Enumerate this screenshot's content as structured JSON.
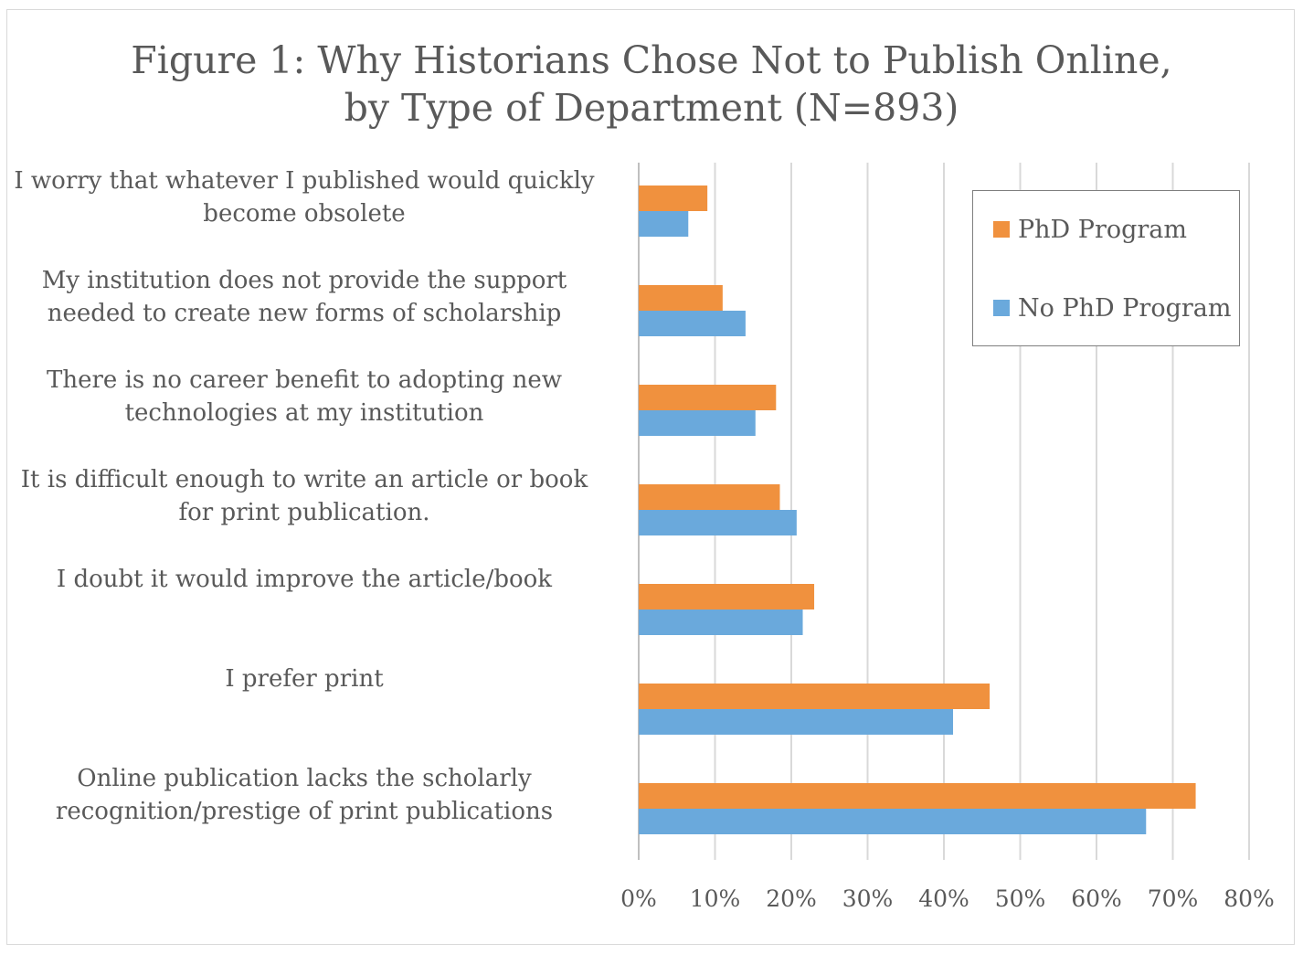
{
  "title_lines": [
    "Figure 1: Why Historians Chose Not to Publish Online,",
    "by Type of Department (N=893)"
  ],
  "chart_data": {
    "type": "bar",
    "orientation": "horizontal",
    "categories": [
      [
        "I worry that whatever I published would quickly",
        "become obsolete"
      ],
      [
        "My institution does not provide the support",
        "needed to create new forms of scholarship"
      ],
      [
        "There is no career benefit to adopting new",
        "technologies at my institution"
      ],
      [
        "It is difficult enough to write an article or book",
        "for print publication."
      ],
      [
        "I doubt it would improve the article/book"
      ],
      [
        "I prefer print"
      ],
      [
        "Online publication lacks the scholarly",
        "recognition/prestige of print publications"
      ]
    ],
    "series": [
      {
        "name": "PhD Program",
        "color": "#f0913e",
        "values": [
          9,
          11,
          18,
          18.5,
          23,
          46,
          73
        ]
      },
      {
        "name": "No PhD Program",
        "color": "#6aa9dc",
        "values": [
          6.5,
          14,
          15.3,
          20.7,
          21.5,
          41.2,
          66.5
        ]
      }
    ],
    "xlim": [
      0,
      80
    ],
    "xticks": [
      "0%",
      "10%",
      "20%",
      "30%",
      "40%",
      "50%",
      "60%",
      "70%",
      "80%"
    ],
    "grid": true,
    "legend_position": "top-right"
  }
}
